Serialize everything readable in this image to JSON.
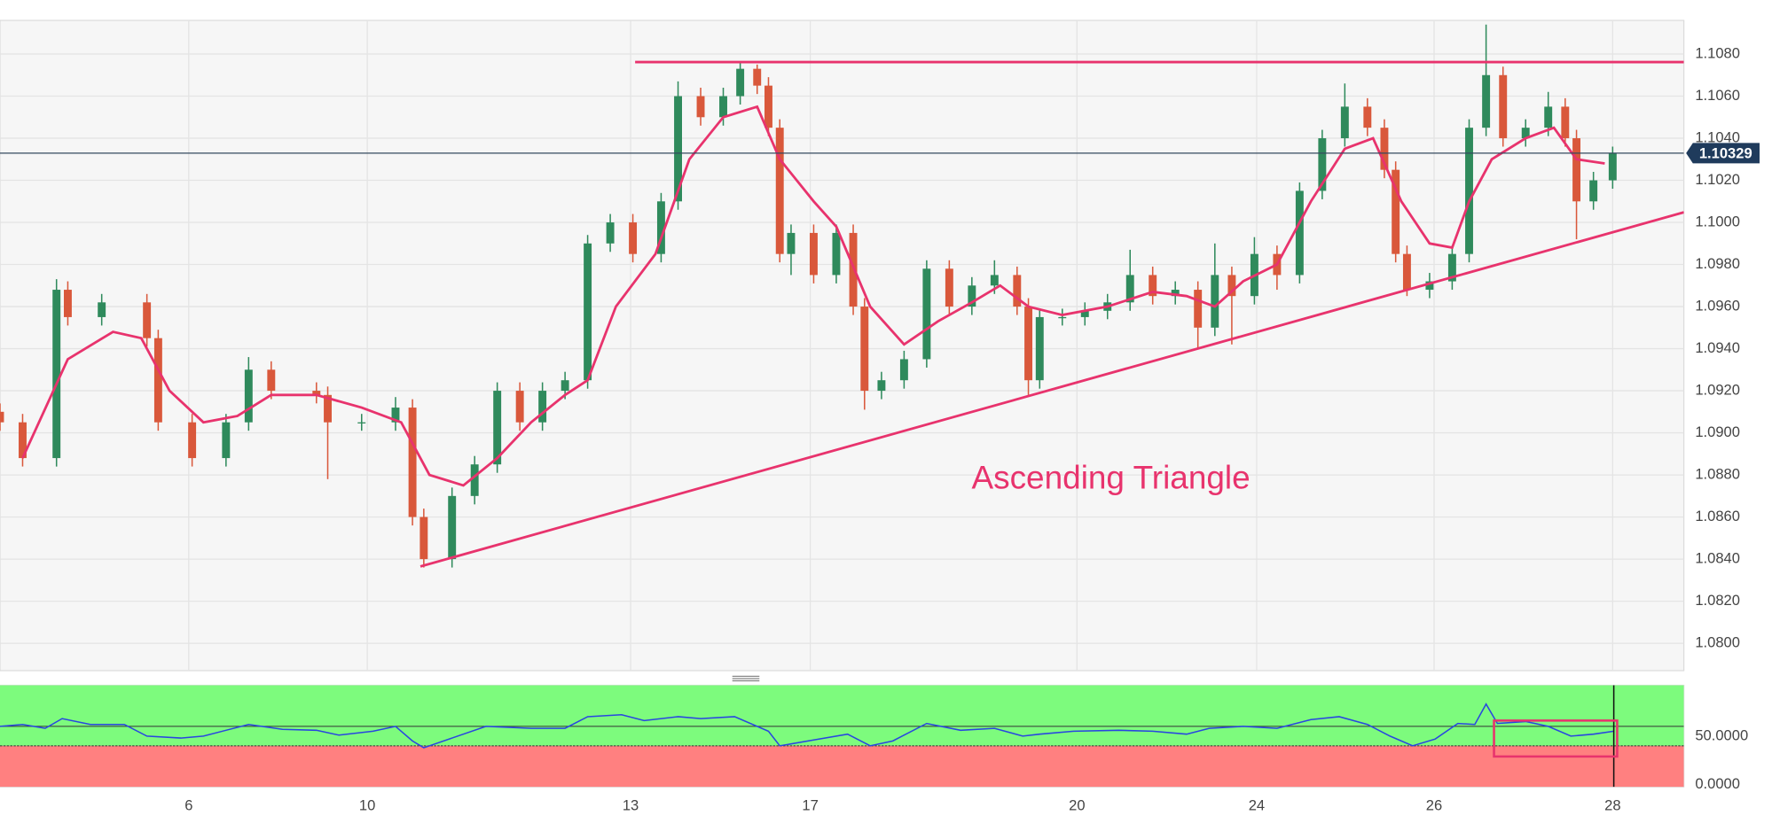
{
  "chart_data": {
    "type": "candlestick",
    "x": [
      0,
      2,
      5,
      6,
      9,
      13,
      14,
      17,
      20,
      22,
      24,
      28,
      29,
      32,
      35,
      36.5,
      37.5,
      40,
      42,
      44,
      46,
      48,
      50,
      52,
      54,
      56,
      58.5,
      60,
      62,
      64,
      65.5,
      67,
      68,
      69,
      70,
      72,
      74,
      75.5,
      76.5,
      78,
      80,
      82,
      84,
      86,
      88,
      90,
      91,
      92,
      94,
      96,
      98,
      100,
      102,
      104,
      106,
      107.5,
      109,
      111,
      113,
      115,
      117,
      119,
      121,
      122.5,
      123.5,
      124.5,
      126.5,
      128.5,
      130,
      131.5,
      133,
      135,
      137,
      138.5,
      139.5,
      141,
      142.7
    ],
    "open": [
      1.091,
      1.0905,
      1.0888,
      1.0968,
      1.0955,
      1.0962,
      1.0945,
      1.0905,
      1.0888,
      1.0905,
      1.093,
      1.092,
      1.0918,
      1.0905,
      1.0905,
      1.0912,
      1.086,
      1.084,
      1.087,
      1.0885,
      1.092,
      1.0905,
      1.092,
      1.0925,
      1.099,
      1.1,
      1.0985,
      1.101,
      1.106,
      1.105,
      1.106,
      1.1073,
      1.1065,
      1.1045,
      1.0985,
      1.0995,
      1.0975,
      1.0995,
      1.096,
      1.092,
      1.0925,
      1.0935,
      1.0978,
      1.096,
      1.097,
      1.0975,
      1.096,
      1.0925,
      1.0955,
      1.0955,
      1.0958,
      1.0962,
      1.0975,
      1.0965,
      1.0968,
      1.095,
      1.0975,
      1.0965,
      1.0985,
      1.0975,
      1.1015,
      1.104,
      1.1055,
      1.1045,
      1.1025,
      1.0985,
      1.0968,
      1.0972,
      1.0985,
      1.1045,
      1.107,
      1.104,
      1.1045,
      1.1055,
      1.104,
      1.101,
      1.102
    ],
    "high": [
      1.0914,
      1.0909,
      1.0973,
      1.0972,
      1.0966,
      1.0966,
      1.0949,
      1.0909,
      1.0909,
      1.0936,
      1.0934,
      1.0924,
      1.0922,
      1.0909,
      1.0917,
      1.0916,
      1.0864,
      1.0874,
      1.0889,
      1.0924,
      1.0924,
      1.0924,
      1.0929,
      1.0994,
      1.1004,
      1.1004,
      1.1014,
      1.1067,
      1.1064,
      1.1064,
      1.1076,
      1.1075,
      1.1069,
      1.1049,
      1.0999,
      1.0999,
      1.0999,
      1.0999,
      1.0964,
      1.0929,
      1.0939,
      1.0982,
      1.0982,
      1.0974,
      1.0982,
      1.0979,
      1.0964,
      1.0959,
      1.0959,
      1.0962,
      1.0966,
      1.0987,
      1.0979,
      1.0972,
      1.0972,
      1.099,
      1.0979,
      1.0993,
      1.0989,
      1.1019,
      1.1044,
      1.1066,
      1.1059,
      1.1049,
      1.1029,
      1.0989,
      1.0976,
      1.0989,
      1.1049,
      1.1094,
      1.1074,
      1.1049,
      1.1062,
      1.1059,
      1.1044,
      1.1024,
      1.1036
    ],
    "low": [
      1.0901,
      1.0884,
      1.0884,
      1.0951,
      1.0951,
      1.0941,
      1.0901,
      1.0884,
      1.0884,
      1.0901,
      1.0916,
      1.0914,
      1.0878,
      1.0901,
      1.0901,
      1.0856,
      1.0836,
      1.0836,
      1.0866,
      1.0881,
      1.0901,
      1.0901,
      1.0916,
      1.0921,
      1.0986,
      1.0981,
      1.0981,
      1.1006,
      1.1046,
      1.1046,
      1.1056,
      1.1061,
      1.1041,
      1.0981,
      1.0975,
      1.0971,
      1.0971,
      1.0956,
      1.0911,
      1.0916,
      1.0921,
      1.0931,
      1.0956,
      1.0956,
      1.0966,
      1.0956,
      1.0918,
      1.0921,
      1.0951,
      1.0951,
      1.0954,
      1.0958,
      1.0961,
      1.0961,
      1.094,
      1.0946,
      1.0942,
      1.0961,
      1.0968,
      1.0971,
      1.1011,
      1.1036,
      1.1041,
      1.1021,
      1.0981,
      1.0965,
      1.0964,
      1.0968,
      1.0981,
      1.1041,
      1.1036,
      1.1036,
      1.1041,
      1.1036,
      1.0992,
      1.1006,
      1.1016
    ],
    "close": [
      1.0905,
      1.0888,
      1.0968,
      1.0955,
      1.0962,
      1.0945,
      1.0905,
      1.0888,
      1.0905,
      1.093,
      1.092,
      1.0918,
      1.0905,
      1.0905,
      1.0912,
      1.086,
      1.084,
      1.087,
      1.0885,
      1.092,
      1.0905,
      1.092,
      1.0925,
      1.099,
      1.1,
      1.0985,
      1.101,
      1.106,
      1.105,
      1.106,
      1.1073,
      1.1065,
      1.1045,
      1.0985,
      1.0995,
      1.0975,
      1.0995,
      1.096,
      1.092,
      1.0925,
      1.0935,
      1.0978,
      1.096,
      1.097,
      1.0975,
      1.096,
      1.0925,
      1.0955,
      1.0955,
      1.0958,
      1.0962,
      1.0975,
      1.0965,
      1.0968,
      1.095,
      1.0975,
      1.0965,
      1.0985,
      1.0975,
      1.1015,
      1.104,
      1.1055,
      1.1045,
      1.1025,
      1.0985,
      1.0968,
      1.0972,
      1.0985,
      1.1045,
      1.107,
      1.104,
      1.1045,
      1.1055,
      1.104,
      1.101,
      1.102,
      1.1033
    ],
    "up_color": "#2f8a5c",
    "down_color": "#d9583b",
    "xlim": [
      0,
      149
    ],
    "xticks": [
      {
        "value": 16.7,
        "label": "6"
      },
      {
        "value": 32.5,
        "label": "10"
      },
      {
        "value": 55.8,
        "label": "13"
      },
      {
        "value": 71.7,
        "label": "17"
      },
      {
        "value": 95.3,
        "label": "20"
      },
      {
        "value": 111.2,
        "label": "24"
      },
      {
        "value": 126.9,
        "label": "26"
      },
      {
        "value": 142.7,
        "label": "28"
      }
    ],
    "ylim": [
      1.0787,
      1.1096
    ],
    "yticks": [
      {
        "value": 1.08,
        "label": "1.0800"
      },
      {
        "value": 1.082,
        "label": "1.0820"
      },
      {
        "value": 1.084,
        "label": "1.0840"
      },
      {
        "value": 1.086,
        "label": "1.0860"
      },
      {
        "value": 1.088,
        "label": "1.0880"
      },
      {
        "value": 1.09,
        "label": "1.0900"
      },
      {
        "value": 1.092,
        "label": "1.0920"
      },
      {
        "value": 1.094,
        "label": "1.0940"
      },
      {
        "value": 1.096,
        "label": "1.0960"
      },
      {
        "value": 1.098,
        "label": "1.0980"
      },
      {
        "value": 1.1,
        "label": "1.1000"
      },
      {
        "value": 1.102,
        "label": "1.1020"
      },
      {
        "value": 1.104,
        "label": "1.1040"
      },
      {
        "value": 1.106,
        "label": "1.1060"
      },
      {
        "value": 1.108,
        "label": "1.1080"
      }
    ],
    "grid": true,
    "last_price": 1.10329,
    "moving_average": {
      "color": "#e8336d",
      "x": [
        2,
        6,
        10,
        12.5,
        15,
        18,
        21,
        24,
        28,
        32,
        35.5,
        38,
        41,
        44,
        47,
        50,
        52,
        54.5,
        58,
        61,
        64,
        67,
        69,
        72,
        74,
        77,
        80,
        83,
        86,
        88.5,
        91,
        94,
        98,
        102,
        105,
        107.5,
        110,
        113,
        116,
        119,
        121.5,
        124,
        126.5,
        128.5,
        130,
        132,
        135,
        137.5,
        139.5,
        142
      ],
      "values": [
        1.0888,
        1.0935,
        1.0948,
        1.0945,
        1.092,
        1.0905,
        1.0908,
        1.0918,
        1.0918,
        1.0912,
        1.0905,
        1.088,
        1.0875,
        1.0888,
        1.0905,
        1.0918,
        1.0925,
        1.096,
        1.0985,
        1.103,
        1.105,
        1.1055,
        1.103,
        1.101,
        1.0998,
        1.096,
        1.0942,
        1.0953,
        1.0962,
        1.097,
        1.096,
        1.0956,
        1.096,
        1.0967,
        1.0965,
        1.096,
        1.0972,
        1.098,
        1.101,
        1.1035,
        1.104,
        1.101,
        1.099,
        1.0988,
        1.101,
        1.103,
        1.104,
        1.1045,
        1.103,
        1.1028
      ]
    },
    "trendlines": [
      {
        "x": [
          56.2,
          149
        ],
        "y": [
          1.10762,
          1.10762
        ]
      },
      {
        "x": [
          37.2,
          149
        ],
        "y": [
          1.08365,
          1.10048
        ]
      }
    ],
    "trendline_color": "#e8336d",
    "annotation": "Ascending Triangle",
    "indicator": {
      "type": "line",
      "color": "#2946e0",
      "x": [
        0,
        2,
        4,
        5.5,
        8,
        11,
        13,
        16,
        18,
        20,
        22,
        25,
        28,
        30,
        33,
        35,
        36.5,
        37.5,
        40,
        43,
        47,
        50,
        52,
        55,
        57,
        60,
        62,
        65,
        68,
        69,
        72,
        75,
        77,
        79,
        82,
        85,
        88,
        90.5,
        92,
        95,
        99,
        102,
        105,
        107,
        110,
        113,
        116,
        118.5,
        121,
        123,
        125,
        127,
        129,
        130.5,
        131.5,
        132.5,
        135,
        137,
        139,
        141,
        142.8
      ],
      "values": [
        60,
        62,
        58,
        68,
        62,
        62,
        50,
        48,
        50,
        56,
        62,
        57,
        56,
        51,
        55,
        60,
        45,
        38,
        48,
        60,
        58,
        58,
        70,
        72,
        66,
        70,
        68,
        70,
        55,
        40,
        46,
        52,
        40,
        45,
        63,
        56,
        58,
        50,
        52,
        55,
        56,
        55,
        52,
        58,
        60,
        58,
        67,
        70,
        62,
        50,
        40,
        47,
        63,
        62,
        83,
        63,
        65,
        60,
        50,
        52,
        55
      ],
      "ylim": [
        -2.3,
        102.3
      ],
      "yticks": [
        {
          "value": 50,
          "label": "50.0000"
        },
        {
          "value": 0,
          "label": "0.0000"
        }
      ],
      "levels": [
        60,
        40
      ],
      "upper_fill": "#7dfb7d",
      "lower_fill": "#ff8080",
      "highlight": {
        "x": [
          132.2,
          143.1
        ],
        "y": [
          29,
          66
        ]
      }
    }
  }
}
